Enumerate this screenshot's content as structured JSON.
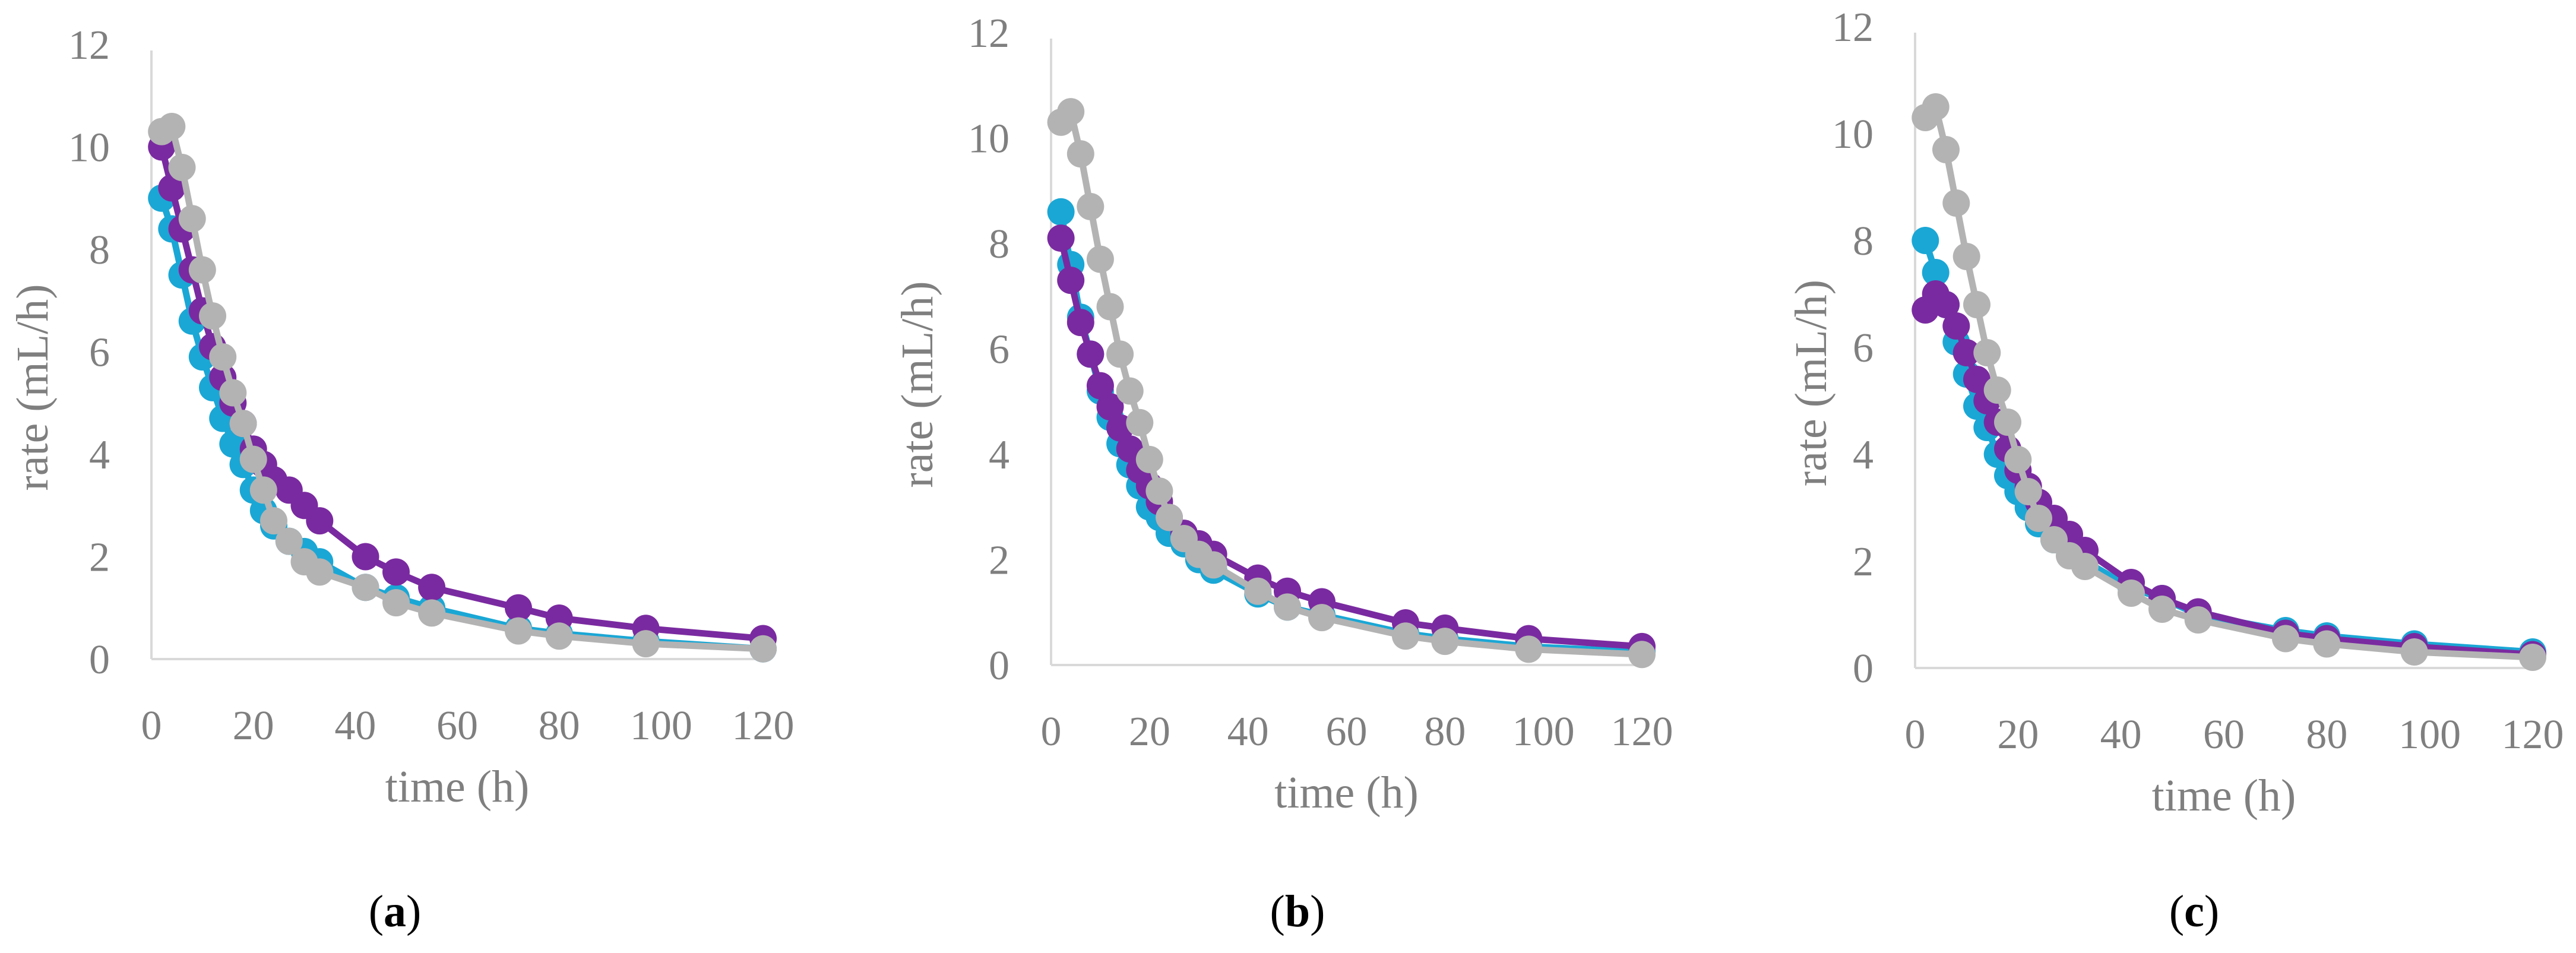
{
  "colors": {
    "blue": "#1aa7d5",
    "purple": "#7a2aa0",
    "gray": "#b3b3b3",
    "axis": "#d9d9d9",
    "text": "#7f7f7f"
  },
  "chart_data": [
    {
      "type": "line",
      "panel": "a",
      "caption": "(a)",
      "xlabel": "time (h)",
      "ylabel": "rate (mL/h)",
      "xlim": [
        0,
        120
      ],
      "ylim": [
        0,
        12
      ],
      "xticks": [
        0,
        20,
        40,
        60,
        80,
        100,
        120
      ],
      "yticks": [
        0,
        2,
        4,
        6,
        8,
        10,
        12
      ],
      "grid": false,
      "series": [
        {
          "color": "blue",
          "x": [
            2,
            4,
            6,
            8,
            10,
            12,
            14,
            16,
            18,
            20,
            22,
            24,
            27,
            30,
            33,
            42,
            48,
            55,
            72,
            80,
            97,
            120
          ],
          "y": [
            9.0,
            8.4,
            7.5,
            6.6,
            5.9,
            5.3,
            4.7,
            4.2,
            3.8,
            3.3,
            2.9,
            2.6,
            2.3,
            2.1,
            1.9,
            1.4,
            1.2,
            1.0,
            0.6,
            0.5,
            0.35,
            0.2
          ]
        },
        {
          "color": "purple",
          "x": [
            2,
            4,
            6,
            8,
            10,
            12,
            14,
            16,
            18,
            20,
            22,
            24,
            27,
            30,
            33,
            42,
            48,
            55,
            72,
            80,
            97,
            120
          ],
          "y": [
            10.0,
            9.2,
            8.4,
            7.6,
            6.8,
            6.1,
            5.5,
            5.0,
            4.6,
            4.1,
            3.8,
            3.5,
            3.3,
            3.0,
            2.7,
            2.0,
            1.7,
            1.4,
            1.0,
            0.8,
            0.6,
            0.4
          ]
        },
        {
          "color": "gray",
          "x": [
            2,
            4,
            6,
            8,
            10,
            12,
            14,
            16,
            18,
            20,
            22,
            24,
            27,
            30,
            33,
            42,
            48,
            55,
            72,
            80,
            97,
            120
          ],
          "y": [
            10.3,
            10.4,
            9.6,
            8.6,
            7.6,
            6.7,
            5.9,
            5.2,
            4.6,
            3.9,
            3.3,
            2.7,
            2.3,
            1.9,
            1.7,
            1.4,
            1.1,
            0.9,
            0.55,
            0.45,
            0.3,
            0.2
          ]
        }
      ]
    },
    {
      "type": "line",
      "panel": "b",
      "caption": "(b)",
      "xlabel": "time (h)",
      "ylabel": "rate (mL/h)",
      "xlim": [
        0,
        120
      ],
      "ylim": [
        0,
        12
      ],
      "xticks": [
        0,
        20,
        40,
        60,
        80,
        100,
        120
      ],
      "yticks": [
        0,
        2,
        4,
        6,
        8,
        10,
        12
      ],
      "grid": false,
      "series": [
        {
          "color": "blue",
          "x": [
            2,
            4,
            6,
            8,
            10,
            12,
            14,
            16,
            18,
            20,
            22,
            24,
            27,
            30,
            33,
            42,
            48,
            55,
            72,
            80,
            97,
            120
          ],
          "y": [
            8.6,
            7.6,
            6.6,
            5.9,
            5.2,
            4.7,
            4.2,
            3.8,
            3.4,
            3.0,
            2.8,
            2.5,
            2.3,
            2.0,
            1.8,
            1.35,
            1.1,
            0.95,
            0.6,
            0.5,
            0.35,
            0.25
          ]
        },
        {
          "color": "purple",
          "x": [
            2,
            4,
            6,
            8,
            10,
            12,
            14,
            16,
            18,
            20,
            22,
            24,
            27,
            30,
            33,
            42,
            48,
            55,
            72,
            80,
            97,
            120
          ],
          "y": [
            8.1,
            7.3,
            6.5,
            5.9,
            5.3,
            4.9,
            4.5,
            4.1,
            3.7,
            3.4,
            3.1,
            2.8,
            2.5,
            2.3,
            2.1,
            1.65,
            1.4,
            1.2,
            0.8,
            0.7,
            0.5,
            0.35
          ]
        },
        {
          "color": "gray",
          "x": [
            2,
            4,
            6,
            8,
            10,
            12,
            14,
            16,
            18,
            20,
            22,
            24,
            27,
            30,
            33,
            42,
            48,
            55,
            72,
            80,
            97,
            120
          ],
          "y": [
            10.3,
            10.5,
            9.7,
            8.7,
            7.7,
            6.8,
            5.9,
            5.2,
            4.6,
            3.9,
            3.3,
            2.8,
            2.4,
            2.1,
            1.9,
            1.4,
            1.1,
            0.9,
            0.55,
            0.45,
            0.3,
            0.2
          ]
        }
      ]
    },
    {
      "type": "line",
      "panel": "c",
      "caption": "(c)",
      "xlabel": "time (h)",
      "ylabel": "rate (mL/h)",
      "xlim": [
        0,
        120
      ],
      "ylim": [
        0,
        12
      ],
      "xticks": [
        0,
        20,
        40,
        60,
        80,
        100,
        120
      ],
      "yticks": [
        0,
        2,
        4,
        6,
        8,
        10,
        12
      ],
      "grid": false,
      "series": [
        {
          "color": "blue",
          "x": [
            2,
            4,
            6,
            8,
            10,
            12,
            14,
            16,
            18,
            20,
            22,
            24,
            27,
            30,
            33,
            42,
            48,
            55,
            72,
            80,
            97,
            120
          ],
          "y": [
            8.0,
            7.4,
            6.8,
            6.1,
            5.5,
            4.9,
            4.5,
            4.0,
            3.6,
            3.3,
            3.0,
            2.7,
            2.4,
            2.2,
            2.0,
            1.5,
            1.3,
            1.0,
            0.7,
            0.6,
            0.45,
            0.3
          ]
        },
        {
          "color": "purple",
          "x": [
            2,
            4,
            6,
            8,
            10,
            12,
            14,
            16,
            18,
            20,
            22,
            24,
            27,
            30,
            33,
            42,
            48,
            55,
            72,
            80,
            97,
            120
          ],
          "y": [
            6.7,
            7.0,
            6.8,
            6.4,
            5.9,
            5.4,
            5.0,
            4.6,
            4.1,
            3.7,
            3.4,
            3.1,
            2.8,
            2.5,
            2.2,
            1.6,
            1.3,
            1.05,
            0.65,
            0.55,
            0.4,
            0.25
          ]
        },
        {
          "color": "gray",
          "x": [
            2,
            4,
            6,
            8,
            10,
            12,
            14,
            16,
            18,
            20,
            22,
            24,
            27,
            30,
            33,
            42,
            48,
            55,
            72,
            80,
            97,
            120
          ],
          "y": [
            10.3,
            10.5,
            9.7,
            8.7,
            7.7,
            6.8,
            5.9,
            5.2,
            4.6,
            3.9,
            3.3,
            2.8,
            2.4,
            2.1,
            1.9,
            1.4,
            1.1,
            0.9,
            0.55,
            0.45,
            0.3,
            0.2
          ]
        }
      ]
    }
  ]
}
